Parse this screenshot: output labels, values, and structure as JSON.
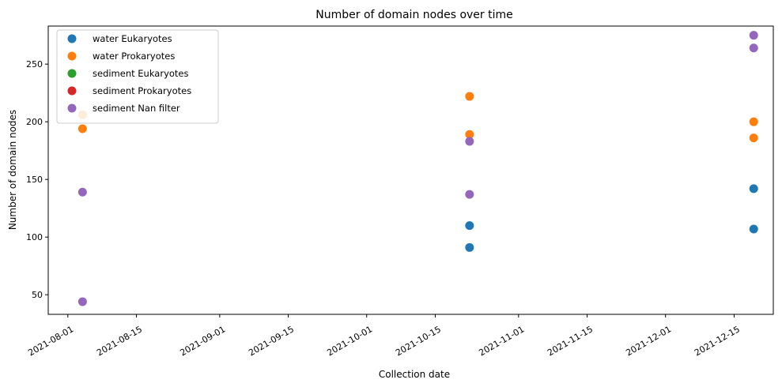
{
  "chart_data": {
    "type": "scatter",
    "title": "Number of domain nodes over time",
    "xlabel": "Collection date",
    "ylabel": "Number of domain nodes",
    "x_ticks": [
      "2021-08-01",
      "2021-08-15",
      "2021-09-01",
      "2021-09-15",
      "2021-10-01",
      "2021-10-15",
      "2021-11-01",
      "2021-11-15",
      "2021-12-01",
      "2021-12-15"
    ],
    "y_ticks": [
      50,
      100,
      150,
      200,
      250
    ],
    "ylim": [
      33,
      283
    ],
    "xlim": [
      "2021-07-28",
      "2021-12-23"
    ],
    "legend_position": "top-left",
    "series": [
      {
        "name": "water Eukaryotes",
        "color": "#1f77b4",
        "points": [
          {
            "x": "2021-10-22",
            "y": 110
          },
          {
            "x": "2021-10-22",
            "y": 91
          },
          {
            "x": "2021-12-19",
            "y": 142
          },
          {
            "x": "2021-12-19",
            "y": 107
          }
        ]
      },
      {
        "name": "water Prokaryotes",
        "color": "#ff7f0e",
        "points": [
          {
            "x": "2021-08-04",
            "y": 206
          },
          {
            "x": "2021-08-04",
            "y": 194
          },
          {
            "x": "2021-10-22",
            "y": 222
          },
          {
            "x": "2021-10-22",
            "y": 189
          },
          {
            "x": "2021-12-19",
            "y": 200
          },
          {
            "x": "2021-12-19",
            "y": 186
          }
        ]
      },
      {
        "name": "sediment Eukaryotes",
        "color": "#2ca02c",
        "points": []
      },
      {
        "name": "sediment Prokaryotes",
        "color": "#d62728",
        "points": []
      },
      {
        "name": "sediment Nan filter",
        "color": "#9467bd",
        "points": [
          {
            "x": "2021-08-04",
            "y": 139
          },
          {
            "x": "2021-08-04",
            "y": 44
          },
          {
            "x": "2021-10-22",
            "y": 183
          },
          {
            "x": "2021-10-22",
            "y": 137
          },
          {
            "x": "2021-12-19",
            "y": 275
          },
          {
            "x": "2021-12-19",
            "y": 264
          }
        ]
      }
    ]
  }
}
